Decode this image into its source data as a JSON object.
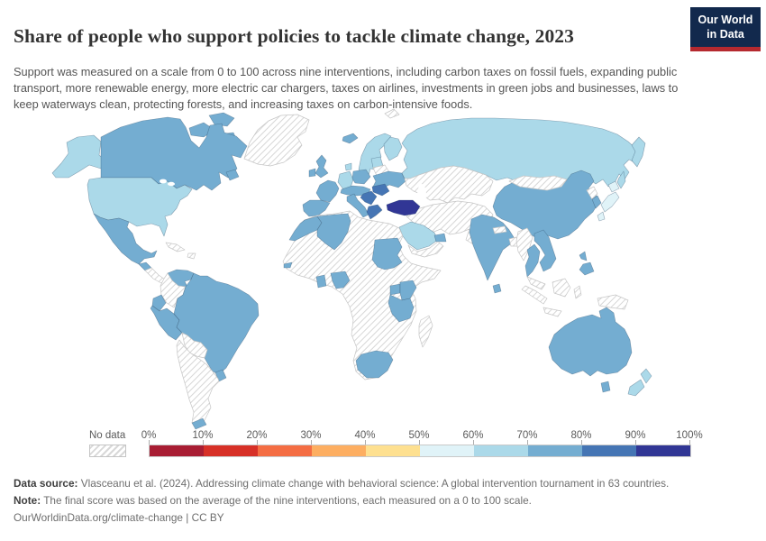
{
  "header": {
    "title": "Share of people who support policies to tackle climate change, 2023",
    "subtitle": "Support was measured on a scale from 0 to 100 across nine interventions, including carbon taxes on fossil fuels, expanding public transport, more renewable energy, more electric car chargers, taxes on airlines, investments in green jobs and businesses, laws to keep waterways clean, protecting forests, and increasing taxes on carbon-intensive foods.",
    "logo": {
      "line1": "Our World",
      "line2": "in Data",
      "bg_color": "#12294d",
      "accent_color": "#b5292f"
    }
  },
  "legend": {
    "no_data_label": "No data",
    "tick_labels": [
      "0%",
      "10%",
      "20%",
      "30%",
      "40%",
      "50%",
      "60%",
      "70%",
      "80%",
      "90%",
      "100%"
    ]
  },
  "chart_data": {
    "type": "choropleth",
    "title": "Share of people who support policies to tackle climate change, 2023",
    "unit": "%",
    "bin_edges_percent": [
      0,
      10,
      20,
      30,
      40,
      50,
      60,
      70,
      80,
      90,
      100
    ],
    "bin_colors": {
      "0-10": "#a81d33",
      "10-20": "#d73027",
      "20-30": "#f46d43",
      "30-40": "#fdae61",
      "40-50": "#fee090",
      "50-60": "#e0f3f8",
      "60-70": "#abd9e9",
      "70-80": "#74add1",
      "80-90": "#4575b4",
      "90-100": "#313695",
      "no-data": "hatch"
    },
    "regions": {
      "greenland": "no-data",
      "canadian-arctic": "70-80",
      "alaska": "60-70",
      "canada": "70-80",
      "newfoundland": "70-80",
      "united-states": "60-70",
      "mexico": "70-80",
      "central-america-west": "70-80",
      "central-america-east": "no-data",
      "cuba": "no-data",
      "hispaniola": "no-data",
      "venezuela": "70-80",
      "colombia": "no-data",
      "ecuador": "70-80",
      "peru": "70-80",
      "brazil": "70-80",
      "bolivia-paraguay": "no-data",
      "uruguay": "70-80",
      "argentina-chile": "no-data",
      "southern-chile": "70-80",
      "iceland": "70-80",
      "norway-sweden": "60-70",
      "finland": "60-70",
      "baltics": "60-70",
      "belarus": "no-data",
      "united-kingdom": "70-80",
      "ireland": "70-80",
      "germany": "60-70",
      "denmark": "60-70",
      "poland": "70-80",
      "france": "70-80",
      "spain-portugal": "70-80",
      "central-europe": "70-80",
      "italy": "70-80",
      "sicily": "70-80",
      "balkans": "80-90",
      "romania": "80-90",
      "greece": "80-90",
      "ukraine": "70-80",
      "russia": "60-70",
      "svalbard": "no-data",
      "turkey": "90-100",
      "central-asia": "no-data",
      "middle-east": "no-data",
      "saudi-arabia": "60-70",
      "united-arab-emirates": "70-80",
      "yemen-oman": "no-data",
      "africa-other": "no-data",
      "morocco": "70-80",
      "algeria": "70-80",
      "senegal": "70-80",
      "ghana": "70-80",
      "nigeria": "70-80",
      "sudan": "70-80",
      "uganda": "70-80",
      "kenya": "70-80",
      "tanzania": "70-80",
      "south-africa": "70-80",
      "madagascar": "no-data",
      "india": "70-80",
      "sri-lanka": "70-80",
      "nepal": "no-data",
      "bangladesh": "no-data",
      "china": "70-80",
      "mongolia": "no-data",
      "north-korea": "no-data",
      "south-korea": "70-80",
      "japan": "50-60",
      "myanmar": "no-data",
      "thailand": "70-80",
      "vietnam": "70-80",
      "malaysia": "no-data",
      "indonesia": "no-data",
      "philippines": "70-80",
      "new-guinea": "no-data",
      "australia": "70-80",
      "tasmania": "70-80",
      "new-zealand": "60-70"
    }
  },
  "footer": {
    "source_label": "Data source:",
    "source_text": " Vlasceanu et al. (2024). Addressing climate change with behavioral science: A global intervention tournament in 63 countries.",
    "note_label": "Note:",
    "note_text": " The final score was based on the average of the nine interventions, each measured on a 0 to 100 scale.",
    "link": "OurWorldinData.org/climate-change",
    "license_suffix": " | CC BY"
  }
}
